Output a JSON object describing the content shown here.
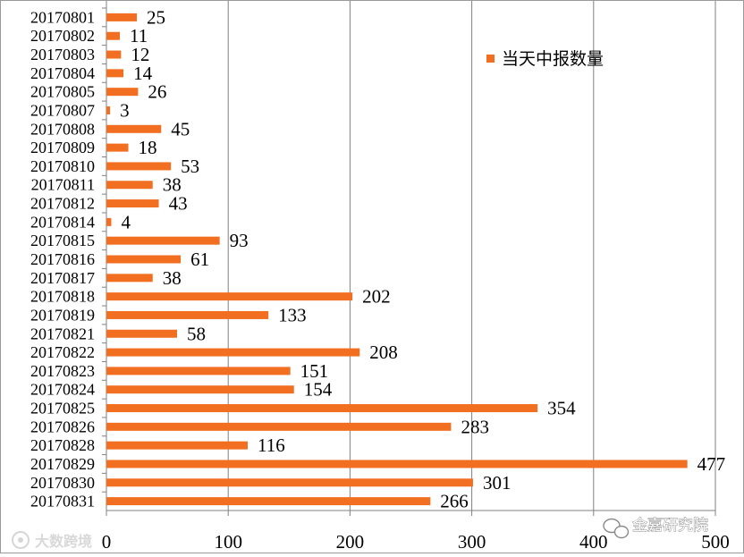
{
  "chart_data": {
    "type": "bar",
    "orientation": "horizontal",
    "title": "",
    "xlabel": "",
    "ylabel": "",
    "categories": [
      "20170801",
      "20170802",
      "20170803",
      "20170804",
      "20170805",
      "20170807",
      "20170808",
      "20170809",
      "20170810",
      "20170811",
      "20170812",
      "20170814",
      "20170815",
      "20170816",
      "20170817",
      "20170818",
      "20170819",
      "20170821",
      "20170822",
      "20170823",
      "20170824",
      "20170825",
      "20170826",
      "20170828",
      "20170829",
      "20170830",
      "20170831"
    ],
    "series": [
      {
        "name": "当天中报数量",
        "color": "#f26f21",
        "values": [
          25,
          11,
          12,
          14,
          26,
          3,
          45,
          18,
          53,
          38,
          43,
          4,
          93,
          61,
          38,
          202,
          133,
          58,
          208,
          151,
          154,
          354,
          283,
          116,
          477,
          301,
          266
        ]
      }
    ],
    "xlim": [
      0,
      500
    ],
    "xticks": [
      0,
      100,
      200,
      300,
      400,
      500
    ],
    "xgrid": true,
    "legend_position": "top-right",
    "data_labels": true
  },
  "watermarks": {
    "left": "大数跨境",
    "right": "金嘉研究院"
  }
}
